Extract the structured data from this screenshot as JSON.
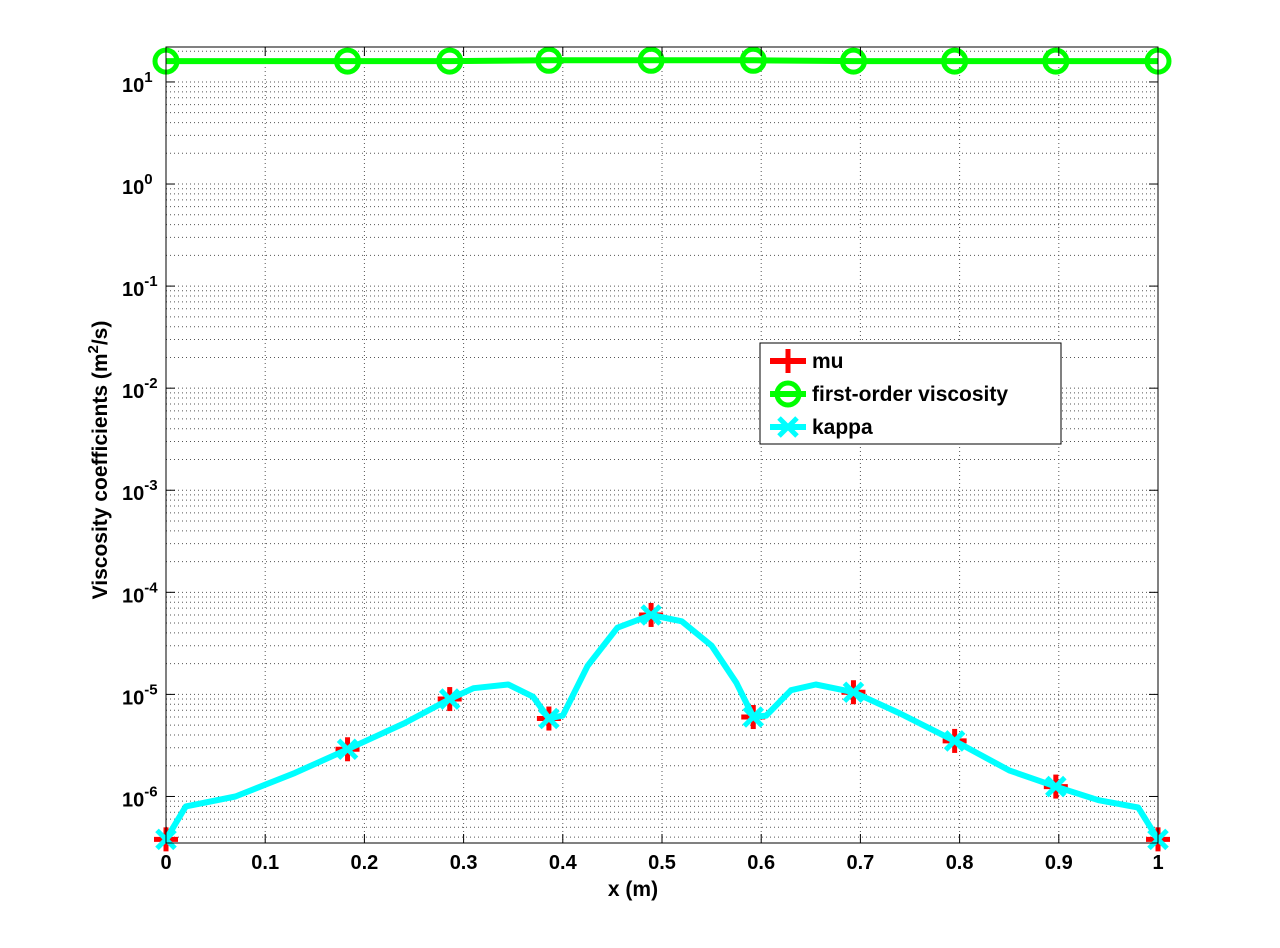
{
  "chart_data": {
    "type": "line",
    "title": "",
    "xlabel": "x (m)",
    "ylabel_base": "Viscosity coefficients (m",
    "ylabel_sup": "2",
    "ylabel_tail": "/s)",
    "xlim": [
      0,
      1
    ],
    "ylim": [
      3.5e-07,
      22
    ],
    "y_scale": "log",
    "grid": true,
    "legend_position": "center-right",
    "xticks": [
      0,
      0.1,
      0.2,
      0.3,
      0.4,
      0.5,
      0.6,
      0.7,
      0.8,
      0.9,
      1
    ],
    "xtick_labels": [
      "0",
      "0.1",
      "0.2",
      "0.3",
      "0.4",
      "0.5",
      "0.6",
      "0.7",
      "0.8",
      "0.9",
      "1"
    ],
    "yticks": [
      {
        "exp": "-6",
        "value": 1e-06
      },
      {
        "exp": "-5",
        "value": 1e-05
      },
      {
        "exp": "-4",
        "value": 0.0001
      },
      {
        "exp": "-3",
        "value": 0.001
      },
      {
        "exp": "-2",
        "value": 0.01
      },
      {
        "exp": "-1",
        "value": 0.1
      },
      {
        "exp": "0",
        "value": 1
      },
      {
        "exp": "1",
        "value": 10
      }
    ],
    "ytick_base": "10",
    "series": [
      {
        "name": "mu",
        "color": "#ff0000",
        "marker": "plus",
        "line": false,
        "x": [
          0,
          0.18,
          0.28,
          0.38,
          0.48,
          0.58,
          0.68,
          0.78,
          0.88,
          0.98
        ],
        "markers_x": [
          0,
          0.183,
          0.286,
          0.386,
          0.489,
          0.592,
          0.693,
          0.795,
          0.897,
          1.0
        ],
        "markers_y": [
          3.8e-07,
          2.9e-06,
          9e-06,
          5.8e-06,
          6e-05,
          6e-06,
          1.05e-05,
          3.5e-06,
          1.25e-06,
          3.8e-07
        ]
      },
      {
        "name": "first-order viscosity",
        "color": "#00ff00",
        "marker": "circle",
        "line": true,
        "x": [
          0,
          0.183,
          0.286,
          0.386,
          0.489,
          0.592,
          0.693,
          0.795,
          0.897,
          1.0
        ],
        "y": [
          16,
          16,
          16,
          16.3,
          16.3,
          16.3,
          16,
          16,
          16,
          16
        ]
      },
      {
        "name": "kappa",
        "color": "#00ffff",
        "marker": "x",
        "line": true,
        "x": [
          0,
          0.02,
          0.07,
          0.13,
          0.183,
          0.24,
          0.286,
          0.31,
          0.345,
          0.37,
          0.386,
          0.4,
          0.425,
          0.455,
          0.489,
          0.52,
          0.55,
          0.575,
          0.592,
          0.605,
          0.63,
          0.655,
          0.693,
          0.74,
          0.795,
          0.85,
          0.897,
          0.94,
          0.98,
          1.0
        ],
        "y": [
          3.8e-07,
          8e-07,
          1e-06,
          1.7e-06,
          2.9e-06,
          5.2e-06,
          9e-06,
          1.15e-05,
          1.25e-05,
          9.5e-06,
          5.8e-06,
          6.2e-06,
          1.9e-05,
          4.5e-05,
          6e-05,
          5.2e-05,
          3e-05,
          1.3e-05,
          6e-06,
          6.2e-06,
          1.1e-05,
          1.25e-05,
          1.05e-05,
          6.5e-06,
          3.5e-06,
          1.8e-06,
          1.25e-06,
          9.2e-07,
          7.8e-07,
          3.8e-07
        ],
        "markers_x": [
          0,
          0.183,
          0.286,
          0.386,
          0.489,
          0.592,
          0.693,
          0.795,
          0.897,
          1.0
        ],
        "markers_y": [
          3.8e-07,
          2.9e-06,
          9e-06,
          5.8e-06,
          6e-05,
          6e-06,
          1.05e-05,
          3.5e-06,
          1.25e-06,
          3.8e-07
        ]
      }
    ],
    "legend": [
      "mu",
      "first-order viscosity",
      "kappa"
    ]
  }
}
